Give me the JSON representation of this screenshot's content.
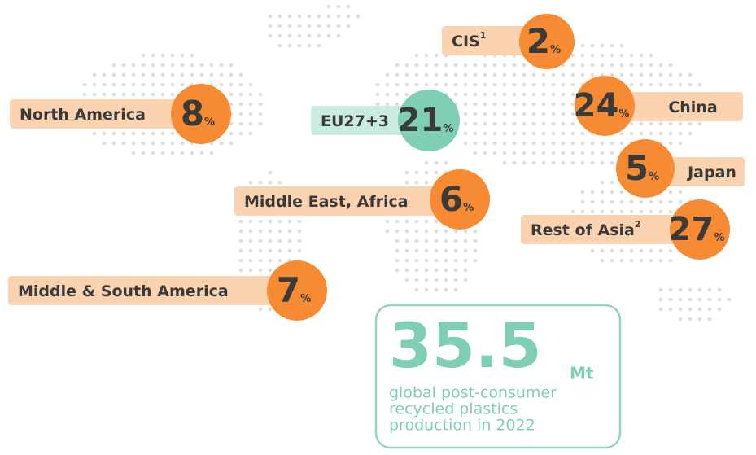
{
  "regions": [
    {
      "name": "CIS",
      "note": "1",
      "value": 2,
      "unit": "%"
    },
    {
      "name": "North America",
      "value": 8,
      "unit": "%"
    },
    {
      "name": "EU27+3",
      "value": 21,
      "unit": "%"
    },
    {
      "name": "China",
      "value": 24,
      "unit": "%"
    },
    {
      "name": "Japan",
      "value": 5,
      "unit": "%"
    },
    {
      "name": "Middle East, Africa",
      "value": 6,
      "unit": "%"
    },
    {
      "name": "Rest of Asia",
      "note": "2",
      "value": 27,
      "unit": "%"
    },
    {
      "name": "Middle & South America",
      "value": 7,
      "unit": "%"
    }
  ],
  "total": {
    "value": 35.5,
    "unit": "Mt",
    "caption": [
      "global post-consumer",
      "recycled plastics",
      "production in 2022"
    ]
  }
}
